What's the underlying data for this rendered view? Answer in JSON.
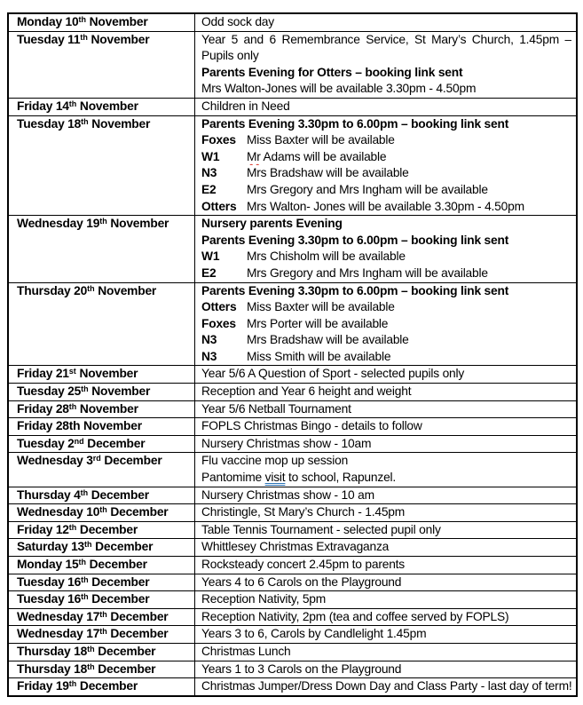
{
  "meta": {
    "colors": {
      "text": "#000000",
      "border": "#000000",
      "spellcheck_red": "#db3425",
      "grammar_blue": "#2e75b6",
      "background": "#ffffff"
    }
  },
  "rows": [
    {
      "date": {
        "pre": "Monday 10",
        "sup": "th",
        "post": " November"
      },
      "lines": [
        {
          "text": "Odd sock day"
        }
      ]
    },
    {
      "date": {
        "pre": "Tuesday 11",
        "sup": "th",
        "post": " November"
      },
      "lines": [
        {
          "text": "Year 5 and 6 Remembrance Service, St Mary’s Church, 1.45pm –"
        },
        {
          "text": "Pupils only"
        },
        {
          "text": "Parents Evening for Otters – booking link sent"
        },
        {
          "text": "Mrs Walton-Jones will be available 3.30pm - 4.50pm"
        }
      ]
    },
    {
      "date": {
        "pre": "Friday 14",
        "sup": "th",
        "post": " November"
      },
      "lines": [
        {
          "text": "Children in Need"
        }
      ]
    },
    {
      "date": {
        "pre": "Tuesday 18",
        "sup": "th",
        "post": " November"
      },
      "lines": [
        {
          "text": "Parents Evening 3.30pm to 6.00pm – booking link sent"
        },
        {
          "label": "Foxes",
          "text": "Miss Baxter will be available"
        },
        {
          "label": "W1",
          "misspelled": "Mr",
          "text": " Adams will be available"
        },
        {
          "label": "N3",
          "text": "Mrs Bradshaw will be available"
        },
        {
          "label": "E2",
          "text": "Mrs Gregory and Mrs Ingham will be available"
        },
        {
          "label": "Otters",
          "text": "Mrs Walton- Jones will be available 3.30pm - 4.50pm"
        }
      ]
    },
    {
      "date": {
        "pre": "Wednesday 19",
        "sup": "th",
        "post": " November"
      },
      "lines": [
        {
          "text": "Nursery parents Evening"
        },
        {
          "text": "Parents Evening 3.30pm to 6.00pm – booking link sent"
        },
        {
          "label": "W1",
          "text": "Mrs Chisholm will be available"
        },
        {
          "label": "E2",
          "text": "Mrs Gregory and Mrs Ingham will be available"
        }
      ]
    },
    {
      "date": {
        "pre": "Thursday 20",
        "sup": "th",
        "post": " November"
      },
      "lines": [
        {
          "text": "Parents Evening 3.30pm to 6.00pm – booking link sent"
        },
        {
          "label": "Otters",
          "text": "Miss Baxter will be available"
        },
        {
          "label": "Foxes",
          "text": "Mrs Porter will be available"
        },
        {
          "label": "N3",
          "text": "Mrs Bradshaw will be available"
        },
        {
          "label": "N3",
          "text": "Miss Smith will be available"
        }
      ]
    },
    {
      "date": {
        "pre": "Friday 21",
        "sup": "st",
        "post": " November"
      },
      "lines": [
        {
          "text": "Year 5/6 A Question of Sport - selected pupils only"
        }
      ]
    },
    {
      "date": {
        "pre": "Tuesday 25",
        "sup": "th",
        "post": " November"
      },
      "lines": [
        {
          "text": "Reception and Year 6 height and weight"
        }
      ]
    },
    {
      "date": {
        "pre": "Friday 28",
        "sup": "th",
        "post": " November"
      },
      "lines": [
        {
          "text": "Year 5/6 Netball Tournament"
        }
      ]
    },
    {
      "date": {
        "pre": "Friday 28th November",
        "sup": "",
        "post": ""
      },
      "lines": [
        {
          "text": "FOPLS Christmas Bingo - details to follow"
        }
      ]
    },
    {
      "date": {
        "pre": "Tuesday 2",
        "sup": "nd",
        "post": " December"
      },
      "lines": [
        {
          "text": "Nursery Christmas show - 10am"
        }
      ]
    },
    {
      "date": {
        "pre": "Wednesday 3",
        "sup": "rd",
        "post": " December"
      },
      "lines": [
        {
          "text": "Flu vaccine mop up session"
        },
        {
          "pre": "Pantomime ",
          "grammar": "visit",
          "post": " to school, Rapunzel."
        }
      ]
    },
    {
      "date": {
        "pre": "Thursday 4",
        "sup": "th",
        "post": " December"
      },
      "lines": [
        {
          "text": "Nursery Christmas show - 10 am"
        }
      ]
    },
    {
      "date": {
        "pre": "Wednesday 10",
        "sup": "th",
        "post": " December"
      },
      "lines": [
        {
          "text": "Christingle, St Mary’s Church - 1.45pm"
        }
      ]
    },
    {
      "date": {
        "pre": "Friday 12",
        "sup": "th",
        "post": " December"
      },
      "lines": [
        {
          "text": "Table Tennis Tournament - selected pupil only"
        }
      ]
    },
    {
      "date": {
        "pre": "Saturday 13",
        "sup": "th",
        "post": " December"
      },
      "lines": [
        {
          "text": "Whittlesey Christmas Extravaganza"
        }
      ]
    },
    {
      "date": {
        "pre": "Monday 15",
        "sup": "th",
        "post": " December"
      },
      "lines": [
        {
          "text": "Rocksteady concert 2.45pm to parents"
        }
      ]
    },
    {
      "date": {
        "pre": "Tuesday 16",
        "sup": "th",
        "post": " December"
      },
      "lines": [
        {
          "text": "Years 4 to 6 Carols on the Playground"
        }
      ]
    },
    {
      "date": {
        "pre": "Tuesday 16",
        "sup": "th",
        "post": " December"
      },
      "lines": [
        {
          "text": "Reception Nativity, 5pm"
        }
      ]
    },
    {
      "date": {
        "pre": "Wednesday 17",
        "sup": "th",
        "post": " December"
      },
      "lines": [
        {
          "text": "Reception Nativity, 2pm (tea and coffee served by FOPLS)"
        }
      ]
    },
    {
      "date": {
        "pre": "Wednesday 17",
        "sup": "th",
        "post": " December"
      },
      "lines": [
        {
          "text": "Years 3 to 6, Carols by Candlelight 1.45pm"
        }
      ]
    },
    {
      "date": {
        "pre": "Thursday 18",
        "sup": "th",
        "post": " December"
      },
      "lines": [
        {
          "text": "Christmas Lunch"
        }
      ]
    },
    {
      "date": {
        "pre": "Thursday 18",
        "sup": "th",
        "post": " December"
      },
      "lines": [
        {
          "text": "Years 1 to 3 Carols on the Playground"
        }
      ]
    },
    {
      "date": {
        "pre": "Friday 19",
        "sup": "th",
        "post": " December"
      },
      "lines": [
        {
          "text": "Christmas Jumper/Dress Down Day and Class Party - last day of term!"
        }
      ]
    }
  ]
}
